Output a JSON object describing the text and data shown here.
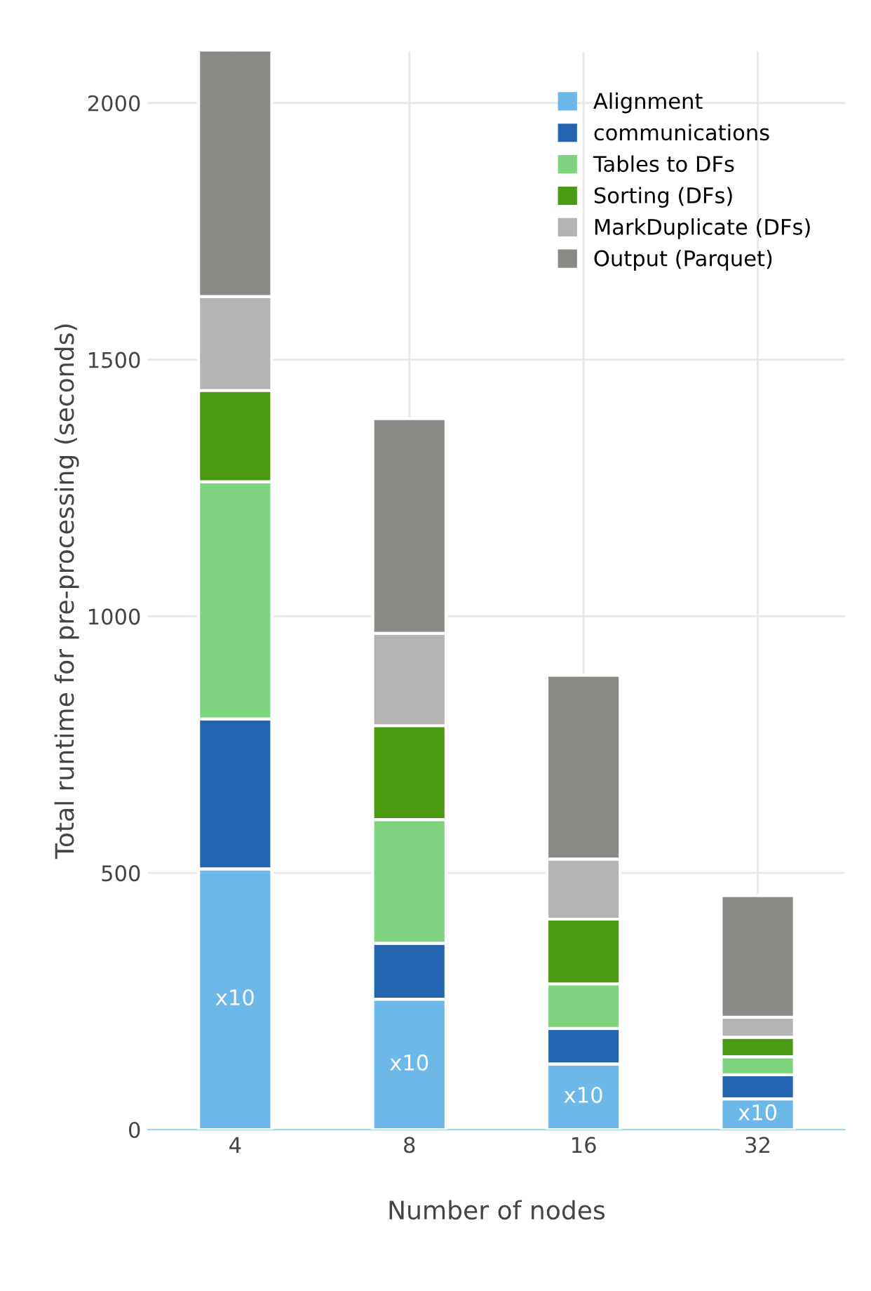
{
  "chart_data": {
    "type": "bar",
    "stacked": true,
    "xlabel": "Number of nodes",
    "ylabel": "Total runtime for pre-processing (seconds)",
    "categories": [
      "4",
      "8",
      "16",
      "32"
    ],
    "series": [
      {
        "name": "Alignment",
        "color": "#6cb8e8",
        "values": [
          508,
          254,
          128,
          60
        ]
      },
      {
        "name": "communications",
        "color": "#2364b0",
        "values": [
          292,
          109,
          69,
          47
        ]
      },
      {
        "name": "Tables to DFs",
        "color": "#7ed47e",
        "values": [
          462,
          241,
          87,
          35
        ]
      },
      {
        "name": "Sorting (DFs)",
        "color": "#4a9a14",
        "values": [
          178,
          183,
          126,
          38
        ]
      },
      {
        "name": "MarkDuplicate (DFs)",
        "color": "#b3b3b3",
        "values": [
          183,
          180,
          117,
          39
        ]
      },
      {
        "name": "Output (Parquet)",
        "color": "#8a8b86",
        "values": [
          481,
          418,
          358,
          237
        ]
      }
    ],
    "annotations": [
      "x10",
      "x10",
      "x10",
      "x10"
    ],
    "ylim": [
      0,
      2100
    ],
    "yticks": [
      0,
      500,
      1000,
      1500,
      2000
    ],
    "grid": true,
    "legend": "top right"
  }
}
